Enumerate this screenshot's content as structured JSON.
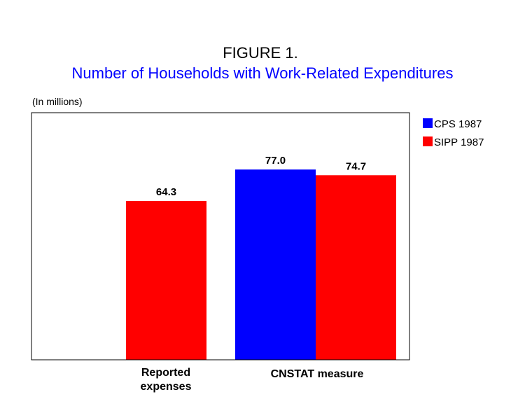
{
  "colors": {
    "title": "#000000",
    "subtitle": "#0000ff",
    "cps": "#0000ff",
    "sipp": "#ff0000",
    "frame": "#000000"
  },
  "chart_data": {
    "type": "bar",
    "title": "FIGURE 1.",
    "subtitle": "Number of Households with Work-Related Expenditures",
    "ylabel": "(In millions)",
    "xlabel": "",
    "ylim": [
      0,
      100
    ],
    "grid": false,
    "legend_position": "right",
    "categories": [
      {
        "lines": [
          "Reported",
          "expenses"
        ]
      },
      {
        "lines": [
          "CNSTAT measure"
        ]
      }
    ],
    "series": [
      {
        "name": "CPS 1987",
        "color": "#0000ff",
        "values": [
          null,
          77.0
        ],
        "labels": [
          "",
          "77.0"
        ]
      },
      {
        "name": "SIPP 1987",
        "color": "#ff0000",
        "values": [
          64.3,
          74.7
        ],
        "labels": [
          "64.3",
          "74.7"
        ]
      }
    ]
  }
}
